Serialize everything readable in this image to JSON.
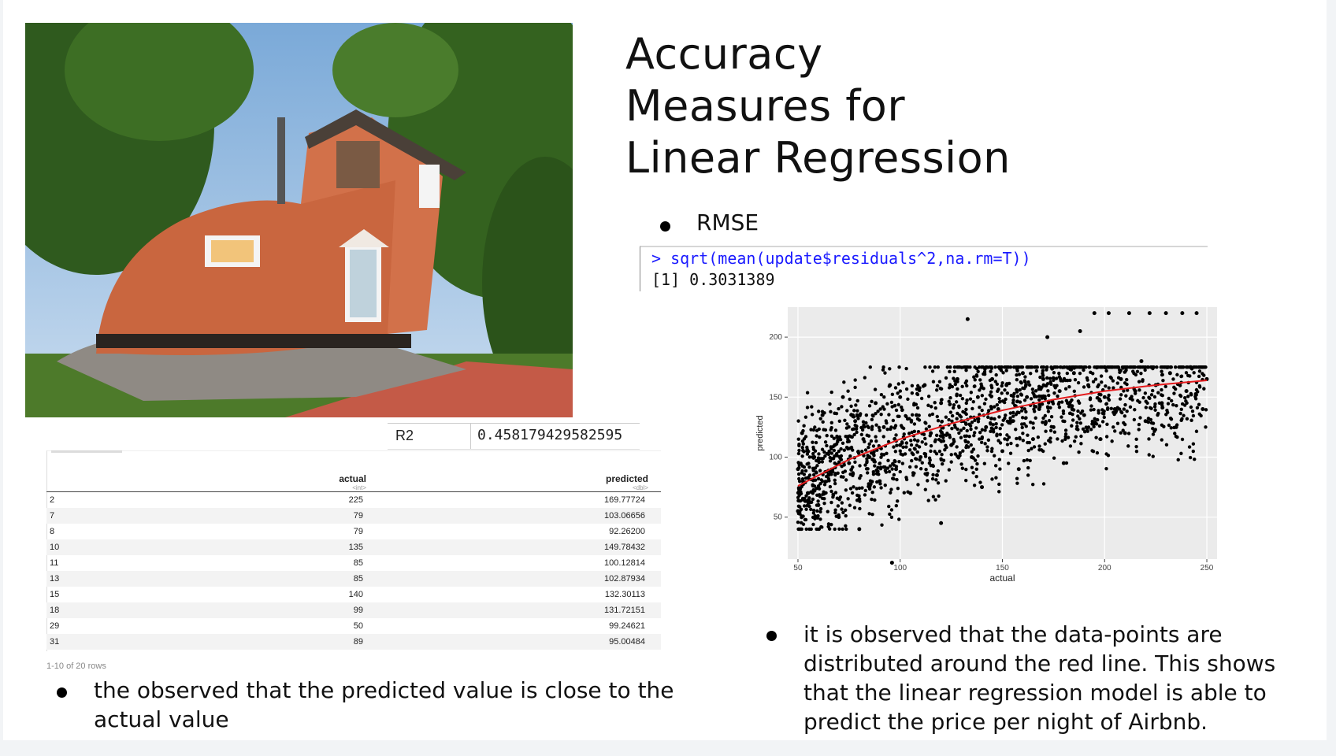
{
  "title": [
    "Accuracy",
    "Measures for",
    "Linear Regression"
  ],
  "rmse_bullet": "RMSE",
  "console": {
    "command": "> sqrt(mean(update$residuals^2,na.rm=T))",
    "output": "[1] 0.3031389"
  },
  "r2": {
    "label": "R2",
    "value": "0.458179429582595"
  },
  "table": {
    "headers": [
      {
        "name": "",
        "type": ""
      },
      {
        "name": "actual",
        "type": "<int>"
      },
      {
        "name": "predicted",
        "type": "<dbl>"
      }
    ],
    "rows": [
      [
        "2",
        "225",
        "169.77724"
      ],
      [
        "7",
        "79",
        "103.06656"
      ],
      [
        "8",
        "79",
        "92.26200"
      ],
      [
        "10",
        "135",
        "149.78432"
      ],
      [
        "11",
        "85",
        "100.12814"
      ],
      [
        "13",
        "85",
        "102.87934"
      ],
      [
        "15",
        "140",
        "132.30113"
      ],
      [
        "18",
        "99",
        "131.72151"
      ],
      [
        "29",
        "50",
        "99.24621"
      ],
      [
        "31",
        "89",
        "95.00484"
      ]
    ],
    "footer": "1-10 of 20 rows"
  },
  "bullet_left": "the observed that the predicted value is close to the actual value",
  "bullet_right": "it is observed that the data-points are distributed around the red line. This shows that the linear regression model is able to predict the price per night of Airbnb.",
  "chart_data": {
    "type": "scatter",
    "xlabel": "actual",
    "ylabel": "predicted",
    "xlim": [
      45,
      255
    ],
    "ylim": [
      15,
      225
    ],
    "xticks": [
      50,
      100,
      150,
      200,
      250
    ],
    "yticks": [
      50,
      100,
      150,
      200
    ],
    "grid": true,
    "background": "#ebebeb",
    "point_color": "#000000",
    "fit_color": "#e41a1c",
    "fit_line": {
      "x": [
        50,
        75,
        100,
        125,
        150,
        175,
        200,
        225,
        250
      ],
      "y": [
        76,
        98,
        115,
        128,
        139,
        148,
        155,
        160,
        164
      ]
    },
    "points": [
      [
        50,
        55
      ],
      [
        50,
        90
      ],
      [
        52,
        120
      ],
      [
        55,
        70
      ],
      [
        58,
        100
      ],
      [
        60,
        60
      ],
      [
        62,
        135
      ],
      [
        65,
        85
      ],
      [
        68,
        110
      ],
      [
        70,
        50
      ],
      [
        72,
        150
      ],
      [
        75,
        95
      ],
      [
        78,
        130
      ],
      [
        80,
        65
      ],
      [
        82,
        115
      ],
      [
        85,
        100
      ],
      [
        88,
        145
      ],
      [
        90,
        80
      ],
      [
        92,
        125
      ],
      [
        95,
        160
      ],
      [
        98,
        90
      ],
      [
        100,
        110
      ],
      [
        100,
        150
      ],
      [
        105,
        70
      ],
      [
        108,
        135
      ],
      [
        110,
        100
      ],
      [
        112,
        160
      ],
      [
        115,
        120
      ],
      [
        118,
        85
      ],
      [
        120,
        145
      ],
      [
        125,
        110
      ],
      [
        128,
        165
      ],
      [
        130,
        130
      ],
      [
        133,
        215
      ],
      [
        135,
        100
      ],
      [
        138,
        150
      ],
      [
        140,
        75
      ],
      [
        142,
        125
      ],
      [
        145,
        165
      ],
      [
        148,
        140
      ],
      [
        150,
        105
      ],
      [
        152,
        160
      ],
      [
        155,
        130
      ],
      [
        158,
        90
      ],
      [
        160,
        170
      ],
      [
        162,
        150
      ],
      [
        165,
        115
      ],
      [
        168,
        140
      ],
      [
        170,
        165
      ],
      [
        172,
        200
      ],
      [
        175,
        125
      ],
      [
        178,
        155
      ],
      [
        180,
        95
      ],
      [
        182,
        145
      ],
      [
        185,
        170
      ],
      [
        188,
        205
      ],
      [
        190,
        135
      ],
      [
        192,
        160
      ],
      [
        195,
        220
      ],
      [
        198,
        115
      ],
      [
        200,
        150
      ],
      [
        200,
        175
      ],
      [
        202,
        220
      ],
      [
        205,
        140
      ],
      [
        208,
        165
      ],
      [
        210,
        120
      ],
      [
        212,
        220
      ],
      [
        215,
        155
      ],
      [
        218,
        180
      ],
      [
        220,
        130
      ],
      [
        222,
        220
      ],
      [
        225,
        160
      ],
      [
        228,
        145
      ],
      [
        230,
        220
      ],
      [
        232,
        170
      ],
      [
        235,
        125
      ],
      [
        238,
        220
      ],
      [
        240,
        155
      ],
      [
        242,
        175
      ],
      [
        245,
        220
      ],
      [
        248,
        140
      ],
      [
        250,
        165
      ],
      [
        96,
        12
      ],
      [
        80,
        40
      ],
      [
        120,
        45
      ]
    ]
  }
}
